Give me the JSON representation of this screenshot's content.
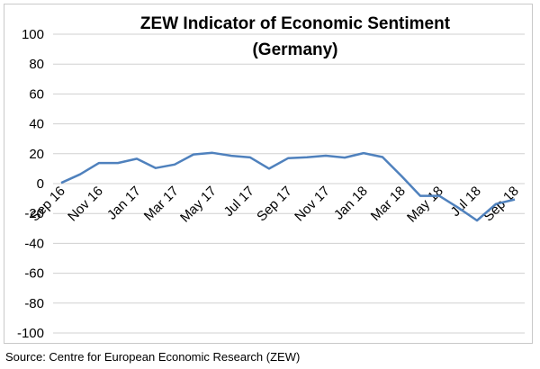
{
  "chart_data": {
    "type": "line",
    "title_lines": [
      "ZEW Indicator of Economic Sentiment",
      "(Germany)"
    ],
    "xlabel": "",
    "ylabel": "",
    "ylim": [
      -100,
      100
    ],
    "y_ticks": [
      100,
      80,
      60,
      40,
      20,
      0,
      -20,
      -40,
      -60,
      -80,
      -100
    ],
    "grid": "horizontal",
    "legend": "none",
    "x_tick_labels": [
      "Sep 16",
      "Nov 16",
      "Jan 17",
      "Mar 17",
      "May 17",
      "Jul 17",
      "Sep 17",
      "Nov 17",
      "Jan 18",
      "Mar 18",
      "May 18",
      "Jul 18",
      "Sep 18"
    ],
    "series": [
      {
        "name": "ZEW Indicator of Economic Sentiment",
        "color": "#4f81bd",
        "x": [
          "Sep 16",
          "Oct 16",
          "Nov 16",
          "Dec 16",
          "Jan 17",
          "Feb 17",
          "Mar 17",
          "Apr 17",
          "May 17",
          "Jun 17",
          "Jul 17",
          "Aug 17",
          "Sep 17",
          "Oct 17",
          "Nov 17",
          "Dec 17",
          "Jan 18",
          "Feb 18",
          "Mar 18",
          "Apr 18",
          "May 18",
          "Jun 18",
          "Jul 18",
          "Aug 18",
          "Sep 18"
        ],
        "values": [
          0.5,
          6.2,
          13.8,
          13.8,
          16.6,
          10.4,
          12.8,
          19.5,
          20.6,
          18.6,
          17.5,
          10.0,
          17.0,
          17.6,
          18.7,
          17.4,
          20.4,
          17.8,
          5.1,
          -8.2,
          -8.2,
          -16.1,
          -24.7,
          -13.7,
          -10.6
        ]
      }
    ]
  },
  "source_note": "Source: Centre for European Economic Research (ZEW)"
}
